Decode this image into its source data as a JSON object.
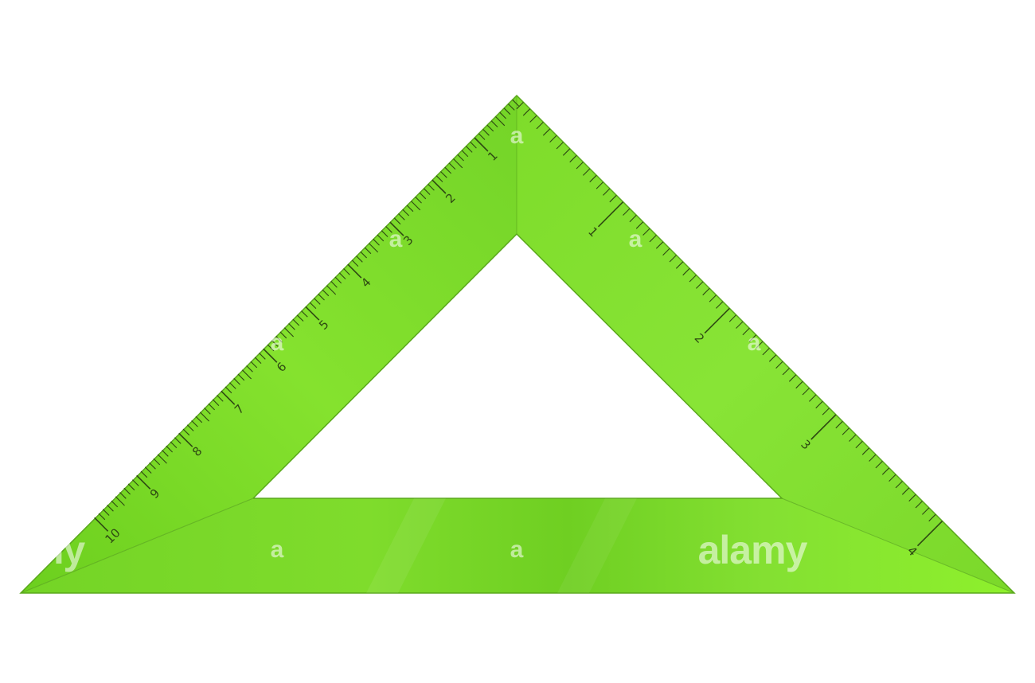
{
  "image": {
    "subject": "Green set square (45° triangle ruler) with printed scales",
    "colors": {
      "ruler_light": "#8ef02c",
      "ruler_mid": "#79d62a",
      "ruler_dark": "#5fb41c",
      "tick": "#2e4a12",
      "background": "#ffffff"
    }
  },
  "scales": {
    "left": {
      "labels": [
        "1",
        "2",
        "3",
        "4",
        "5",
        "6",
        "7",
        "8",
        "9",
        "10"
      ]
    },
    "right": {
      "labels": [
        "1",
        "2",
        "3",
        "4"
      ]
    }
  },
  "watermark": {
    "small_mark": "a",
    "brand": "alamy",
    "edge_fragment": "ny"
  }
}
